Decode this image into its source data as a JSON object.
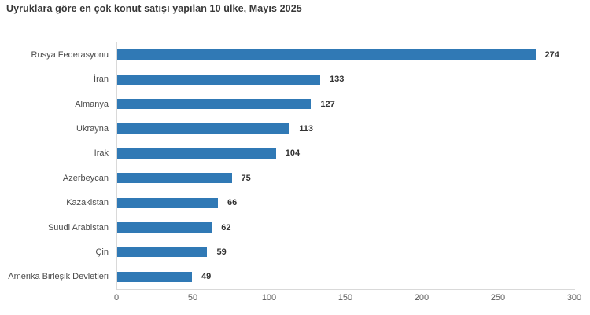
{
  "chart_data": {
    "type": "bar",
    "orientation": "horizontal",
    "title": "Uyruklara göre en çok konut satışı yapılan 10 ülke, Mayıs 2025",
    "categories": [
      "Rusya Federasyonu",
      "İran",
      "Almanya",
      "Ukrayna",
      "Irak",
      "Azerbeycan",
      "Kazakistan",
      "Suudi Arabistan",
      "Çin",
      "Amerika Birleşik Devletleri"
    ],
    "values": [
      274,
      133,
      127,
      113,
      104,
      75,
      66,
      62,
      59,
      49
    ],
    "data_labels": [
      274,
      133,
      127,
      113,
      104,
      75,
      66,
      62,
      59,
      49
    ],
    "x_ticks": [
      0,
      50,
      100,
      150,
      200,
      250,
      300
    ],
    "xlim": [
      0,
      300
    ],
    "xlabel": "",
    "ylabel": "",
    "legend": "none",
    "grid": "off",
    "colors": {
      "bar": "#3079B5",
      "title_text": "#383838",
      "category_text": "#4a4a4a",
      "value_text": "#333333",
      "tick_text": "#595959",
      "axis_line": "#d9d9d9",
      "background": "#ffffff"
    }
  }
}
